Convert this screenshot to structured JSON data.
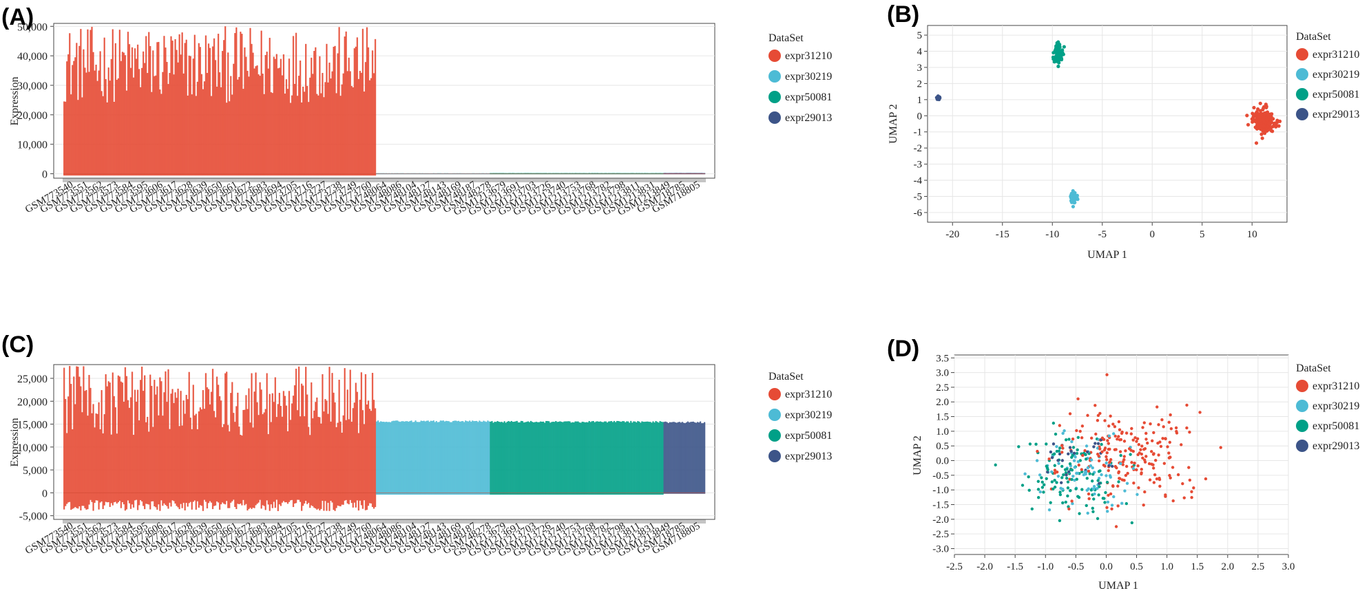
{
  "colors": {
    "expr31210": "#e64b35",
    "expr30219": "#4dbbd5",
    "expr50081": "#00a087",
    "expr29013": "#3c5488"
  },
  "groups": [
    "expr31210",
    "expr30219",
    "expr50081",
    "expr29013"
  ],
  "sample_ticks": [
    "GSM773540",
    "GSM773551",
    "GSM773562",
    "GSM773573",
    "GSM773584",
    "GSM773595",
    "GSM773606",
    "GSM773617",
    "GSM773628",
    "GSM773639",
    "GSM773650",
    "GSM773661",
    "GSM773672",
    "GSM773683",
    "GSM773694",
    "GSM773705",
    "GSM773716",
    "GSM773727",
    "GSM773738",
    "GSM773749",
    "GSM773760",
    "GSM748064",
    "GSM748086",
    "GSM748104",
    "GSM748127",
    "GSM748143",
    "GSM748169",
    "GSM748187",
    "GSM748278",
    "GSM1213679",
    "GSM1213691",
    "GSM1213703",
    "GSM1213726",
    "GSM1213740",
    "GSM1213753",
    "GSM1213768",
    "GSM1213782",
    "GSM1213798",
    "GSM1213811",
    "GSM1213831",
    "GSM1213849",
    "GSM718785",
    "GSM718805"
  ],
  "chart_data": [
    {
      "panel": "(A)",
      "type": "bar",
      "ylabel": "Expression",
      "ylim": [
        -1500,
        51000
      ],
      "yticks": [
        "50,000",
        "40,000",
        "30,000",
        "20,000",
        "10,000",
        "0"
      ],
      "ytick_values": [
        50000,
        40000,
        30000,
        20000,
        10000,
        0
      ],
      "legend_title": "DataSet",
      "legend": [
        "expr31210",
        "expr30219",
        "expr50081",
        "expr29013"
      ],
      "series": [
        {
          "group": "expr31210",
          "n_samples": 225,
          "min": -600,
          "max_range": [
            24000,
            50000
          ]
        },
        {
          "group": "expr30219",
          "n_samples": 82,
          "min": -150,
          "max_range": [
            150,
            200
          ]
        },
        {
          "group": "expr50081",
          "n_samples": 125,
          "min": -150,
          "max_range": [
            200,
            260
          ]
        },
        {
          "group": "expr29013",
          "n_samples": 30,
          "min": -150,
          "max_range": [
            250,
            280
          ]
        }
      ]
    },
    {
      "panel": "(B)",
      "type": "scatter",
      "xlabel": "UMAP 1",
      "ylabel": "UMAP 2",
      "xlim": [
        -22.5,
        13.5
      ],
      "ylim": [
        -6.6,
        5.6
      ],
      "xticks": [
        "-20",
        "-15",
        "-10",
        "-5",
        "0",
        "5",
        "10"
      ],
      "xtick_values": [
        -20,
        -15,
        -10,
        -5,
        0,
        5,
        10
      ],
      "yticks": [
        "5",
        "4",
        "3",
        "2",
        "1",
        "0",
        "-1",
        "-2",
        "-3",
        "-4",
        "-5",
        "-6"
      ],
      "ytick_values": [
        5,
        4,
        3,
        2,
        1,
        0,
        -1,
        -2,
        -3,
        -4,
        -5,
        -6
      ],
      "legend_title": "DataSet",
      "legend": [
        "expr31210",
        "expr30219",
        "expr50081",
        "expr29013"
      ],
      "clusters": [
        {
          "group": "expr31210",
          "center": [
            11.2,
            -0.3
          ],
          "spread": [
            1.0,
            0.7
          ],
          "n": 220
        },
        {
          "group": "expr30219",
          "center": [
            -7.9,
            -5.1
          ],
          "spread": [
            0.25,
            0.4
          ],
          "n": 80
        },
        {
          "group": "expr50081",
          "center": [
            -9.4,
            3.8
          ],
          "spread": [
            0.35,
            0.45
          ],
          "n": 120
        },
        {
          "group": "expr29013",
          "center": [
            -21.4,
            1.1
          ],
          "spread": [
            0.12,
            0.1
          ],
          "n": 25
        }
      ]
    },
    {
      "panel": "(C)",
      "type": "bar",
      "ylabel": "Expression",
      "ylim": [
        -5800,
        28000
      ],
      "yticks": [
        "25,000",
        "20,000",
        "15,000",
        "10,000",
        "5,000",
        "0",
        "-5,000"
      ],
      "ytick_values": [
        25000,
        20000,
        15000,
        10000,
        5000,
        0,
        -5000
      ],
      "legend_title": "DataSet",
      "legend": [
        "expr31210",
        "expr30219",
        "expr50081",
        "expr29013"
      ],
      "series": [
        {
          "group": "expr31210",
          "n_samples": 225,
          "min_range": [
            -4000,
            -1500
          ],
          "max_range": [
            12500,
            27800
          ]
        },
        {
          "group": "expr30219",
          "n_samples": 82,
          "min": -400,
          "max": 15800
        },
        {
          "group": "expr50081",
          "n_samples": 125,
          "min": -400,
          "max": 15700
        },
        {
          "group": "expr29013",
          "n_samples": 30,
          "min": -200,
          "max": 15600
        }
      ]
    },
    {
      "panel": "(D)",
      "type": "scatter",
      "xlabel": "UMAP 1",
      "ylabel": "UMAP 2",
      "xlim": [
        -2.5,
        3.0
      ],
      "ylim": [
        -3.2,
        3.6
      ],
      "xticks": [
        "-2.5",
        "-2.0",
        "-1.5",
        "-1.0",
        "-0.5",
        "0.0",
        "0.5",
        "1.0",
        "1.5",
        "2.0",
        "2.5",
        "3.0"
      ],
      "xtick_values": [
        -2.5,
        -2.0,
        -1.5,
        -1.0,
        -0.5,
        0.0,
        0.5,
        1.0,
        1.5,
        2.0,
        2.5,
        3.0
      ],
      "yticks": [
        "3.5",
        "3.0",
        "2.5",
        "2.0",
        "1.5",
        "1.0",
        "0.5",
        "0.0",
        "-0.5",
        "-1.0",
        "-1.5",
        "-2.0",
        "-2.5",
        "-3.0"
      ],
      "ytick_values": [
        3.5,
        3.0,
        2.5,
        2.0,
        1.5,
        1.0,
        0.5,
        0.0,
        -0.5,
        -1.0,
        -1.5,
        -2.0,
        -2.5,
        -3.0
      ],
      "legend_title": "DataSet",
      "legend": [
        "expr31210",
        "expr30219",
        "expr50081",
        "expr29013"
      ],
      "clusters": [
        {
          "group": "expr31210",
          "center": [
            0.4,
            0.2
          ],
          "spread": [
            1.1,
            1.6
          ],
          "n": 220
        },
        {
          "group": "expr30219",
          "center": [
            -0.3,
            -0.4
          ],
          "spread": [
            0.8,
            1.2
          ],
          "n": 80
        },
        {
          "group": "expr50081",
          "center": [
            -0.6,
            -0.5
          ],
          "spread": [
            0.8,
            1.3
          ],
          "n": 120
        },
        {
          "group": "expr29013",
          "center": [
            -0.5,
            0.0
          ],
          "spread": [
            0.5,
            0.9
          ],
          "n": 25
        }
      ]
    }
  ]
}
